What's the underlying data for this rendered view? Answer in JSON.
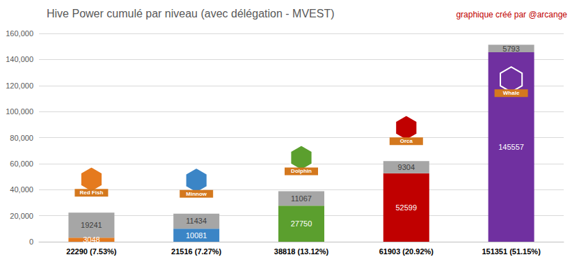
{
  "chart_data": {
    "type": "bar",
    "title": "Hive Power cumulé par niveau (avec délégation - MVEST)",
    "subtitle": "graphique créé par @arcange",
    "categories": [
      "22290 (7.53%)",
      "21516 (7.27%)",
      "38818 (13.12%)",
      "61903 (20.92%)",
      "151351 (51.15%)"
    ],
    "series": [
      {
        "colors": [
          "#e57a1e",
          "#3b85c6",
          "#5b9f2e",
          "#c00000",
          "#7030a0"
        ],
        "values": [
          3048,
          10081,
          27750,
          52599,
          145557
        ]
      },
      {
        "color": "#a6a6a6",
        "values": [
          19241,
          11434,
          11067,
          9304,
          5793
        ]
      }
    ],
    "annotations": [
      "Red Fish",
      "Minnow",
      "Dolphin",
      "Orca",
      "Whale"
    ],
    "stacked": true,
    "data_labels": true,
    "grid": true,
    "ylim": [
      0,
      160000
    ],
    "yticks": [
      0,
      20000,
      40000,
      60000,
      80000,
      100000,
      120000,
      140000,
      160000
    ]
  }
}
